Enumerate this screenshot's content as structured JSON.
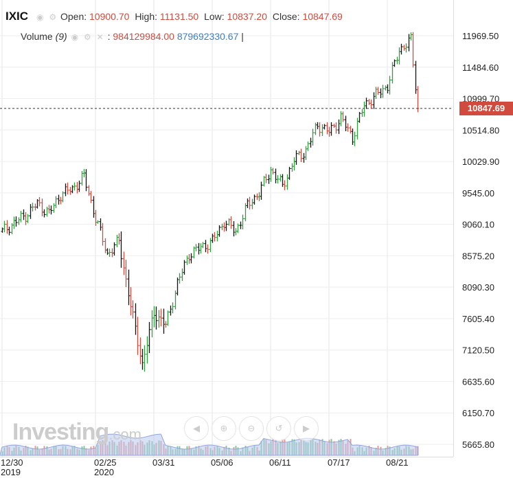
{
  "header": {
    "symbol": "IXIC",
    "open_label": "Open:",
    "open": "10900.70",
    "high_label": "High:",
    "high": "11131.50",
    "low_label": "Low:",
    "low": "10837.20",
    "close_label": "Close:",
    "close": "10847.69",
    "volume_label": "Volume",
    "volume_period": "(9)",
    "volume_value": "984129984.00",
    "volume_ma": "879692330.67",
    "cursor": "|"
  },
  "price_tag": "10847.69",
  "brand": {
    "name": "Investing",
    "suffix": ".com"
  },
  "nav_icons": [
    "chevron-left-icon",
    "zoom-in-icon",
    "zoom-out-icon",
    "zoom-reset-icon",
    "chevron-right-icon"
  ],
  "colors": {
    "up": "#2e9d3b",
    "down": "#d04b3e",
    "bar": "#111111",
    "volume_up": "#7fc8a0",
    "volume_down": "#e59a9a",
    "volume_area": "#b8c8ec",
    "last_price": "#d04b3e",
    "header_value": "#d04b3e",
    "volume_ma": "#3a7fc4"
  },
  "chart_data": {
    "type": "ohlc",
    "y_ticks": [
      "11969.50",
      "11484.60",
      "10999.70",
      "10514.80",
      "10029.90",
      "9545.00",
      "9060.10",
      "8575.20",
      "8090.30",
      "7605.40",
      "7120.50",
      "6635.60",
      "6150.70",
      "5665.80"
    ],
    "x_ticks": [
      {
        "label": "12/30",
        "sub": "2019",
        "week": 0
      },
      {
        "label": "02/25",
        "sub": "2020",
        "week": 8
      },
      {
        "label": "03/31",
        "sub": "",
        "week": 13
      },
      {
        "label": "05/06",
        "sub": "",
        "week": 18
      },
      {
        "label": "06/11",
        "sub": "",
        "week": 23
      },
      {
        "label": "07/17",
        "sub": "",
        "week": 28
      },
      {
        "label": "08/21",
        "sub": "",
        "week": 33
      }
    ],
    "ylim": [
      5430,
      12160
    ],
    "last_close": 10847.69,
    "close_series_weekly": [
      {
        "week": 0,
        "close": 8950
      },
      {
        "week": 1,
        "close": 9080
      },
      {
        "week": 2,
        "close": 9200
      },
      {
        "week": 3,
        "close": 9380
      },
      {
        "week": 4,
        "close": 9230
      },
      {
        "week": 5,
        "close": 9520
      },
      {
        "week": 6,
        "close": 9610
      },
      {
        "week": 7,
        "close": 9800
      },
      {
        "week": 8,
        "close": 9150
      },
      {
        "week": 9,
        "close": 8600
      },
      {
        "week": 10,
        "close": 8800
      },
      {
        "week": 11,
        "close": 7800
      },
      {
        "week": 12,
        "close": 6900
      },
      {
        "week": 13,
        "close": 7700
      },
      {
        "week": 14,
        "close": 7500
      },
      {
        "week": 15,
        "close": 8150
      },
      {
        "week": 16,
        "close": 8600
      },
      {
        "week": 17,
        "close": 8700
      },
      {
        "week": 18,
        "close": 8800
      },
      {
        "week": 19,
        "close": 9100
      },
      {
        "week": 20,
        "close": 8950
      },
      {
        "week": 21,
        "close": 9350
      },
      {
        "week": 22,
        "close": 9550
      },
      {
        "week": 23,
        "close": 9900
      },
      {
        "week": 24,
        "close": 9650
      },
      {
        "week": 25,
        "close": 10050
      },
      {
        "week": 26,
        "close": 10200
      },
      {
        "week": 27,
        "close": 10600
      },
      {
        "week": 28,
        "close": 10480
      },
      {
        "week": 29,
        "close": 10700
      },
      {
        "week": 30,
        "close": 10400
      },
      {
        "week": 31,
        "close": 10900
      },
      {
        "week": 32,
        "close": 11050
      },
      {
        "week": 33,
        "close": 11200
      },
      {
        "week": 34,
        "close": 11750
      },
      {
        "week": 35,
        "close": 11900
      },
      {
        "week": 35.6,
        "close": 10847.69
      }
    ]
  }
}
